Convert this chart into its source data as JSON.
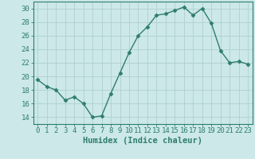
{
  "x": [
    0,
    1,
    2,
    3,
    4,
    5,
    6,
    7,
    8,
    9,
    10,
    11,
    12,
    13,
    14,
    15,
    16,
    17,
    18,
    19,
    20,
    21,
    22,
    23
  ],
  "y": [
    19.5,
    18.5,
    18.0,
    16.5,
    17.0,
    16.0,
    14.0,
    14.2,
    17.5,
    20.5,
    23.5,
    26.0,
    27.3,
    29.0,
    29.2,
    29.7,
    30.2,
    29.0,
    30.0,
    27.8,
    23.8,
    22.0,
    22.2,
    21.8
  ],
  "line_color": "#2e7d6e",
  "marker": "D",
  "marker_size": 2.5,
  "bg_color": "#cce8e8",
  "grid_color": "#b0cfcf",
  "xlabel": "Humidex (Indice chaleur)",
  "xlim": [
    -0.5,
    23.5
  ],
  "ylim": [
    13,
    31
  ],
  "yticks": [
    14,
    16,
    18,
    20,
    22,
    24,
    26,
    28,
    30
  ],
  "xticks": [
    0,
    1,
    2,
    3,
    4,
    5,
    6,
    7,
    8,
    9,
    10,
    11,
    12,
    13,
    14,
    15,
    16,
    17,
    18,
    19,
    20,
    21,
    22,
    23
  ],
  "tick_color": "#2e7d6e",
  "axis_color": "#2e7d6e",
  "xlabel_fontsize": 7.5,
  "tick_fontsize": 6.5
}
